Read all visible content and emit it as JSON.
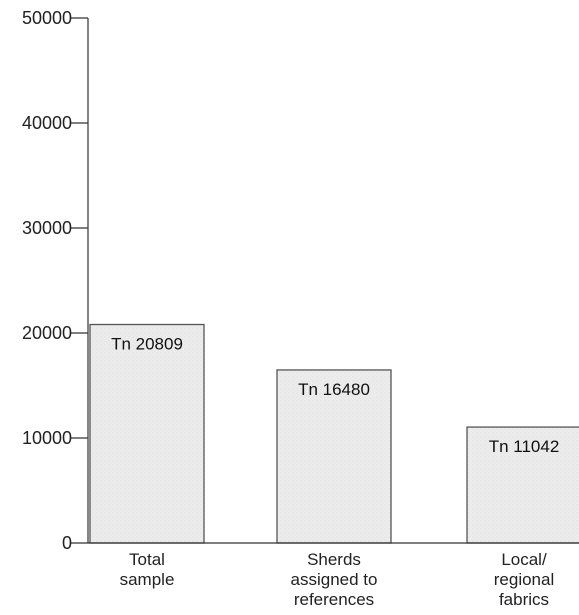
{
  "chart_data": {
    "type": "bar",
    "categories": [
      [
        "Total",
        "sample"
      ],
      [
        "Sherds",
        "assigned to",
        "references"
      ],
      [
        "Local/",
        "regional",
        "fabrics"
      ]
    ],
    "values": [
      20809,
      16480,
      11042
    ],
    "data_labels": [
      "Tn 20809",
      "Tn 16480",
      "Tn 11042"
    ],
    "y_ticks": [
      "0",
      "10000",
      "20000",
      "30000",
      "40000",
      "50000"
    ],
    "ylim": [
      0,
      50000
    ],
    "grid": false,
    "colors": {
      "bar_fill": "#ececec",
      "bar_stroke": "#555555",
      "axis": "#333333"
    }
  }
}
